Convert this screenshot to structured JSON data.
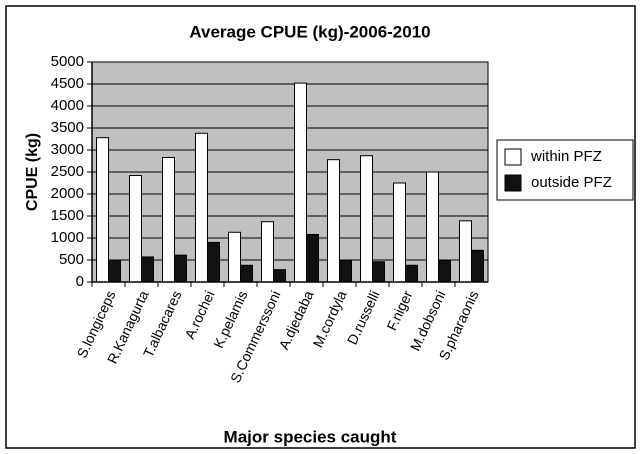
{
  "chart_data": {
    "type": "bar",
    "title": "Average CPUE (kg)-2006-2010",
    "x_label": "Major species caught",
    "y_label": "CPUE (kg)",
    "categories": [
      "S.longiceps",
      "R.Kanagurta",
      "T.albacares",
      "A.rochei",
      "K.pelamis",
      "S.Commerssoni",
      "A.djedaba",
      "M.cordyla",
      "D.russelli",
      "F.niger",
      "M.dobsoni",
      "S.pharaonis"
    ],
    "series": [
      {
        "name": "within PFZ",
        "color": "#ffffff",
        "values": [
          3280,
          2420,
          2830,
          3380,
          1130,
          1370,
          4520,
          2780,
          2870,
          2250,
          2500,
          1390
        ]
      },
      {
        "name": "outside PFZ",
        "color": "#111111",
        "values": [
          500,
          570,
          610,
          900,
          380,
          280,
          1080,
          500,
          460,
          380,
          490,
          720
        ]
      }
    ],
    "ylim": [
      0,
      5000
    ],
    "yticks": [
      0,
      500,
      1000,
      1500,
      2000,
      2500,
      3000,
      3500,
      4000,
      4500,
      5000
    ],
    "grid": true,
    "legend": "right",
    "plot_background": "#c0c0c0"
  }
}
